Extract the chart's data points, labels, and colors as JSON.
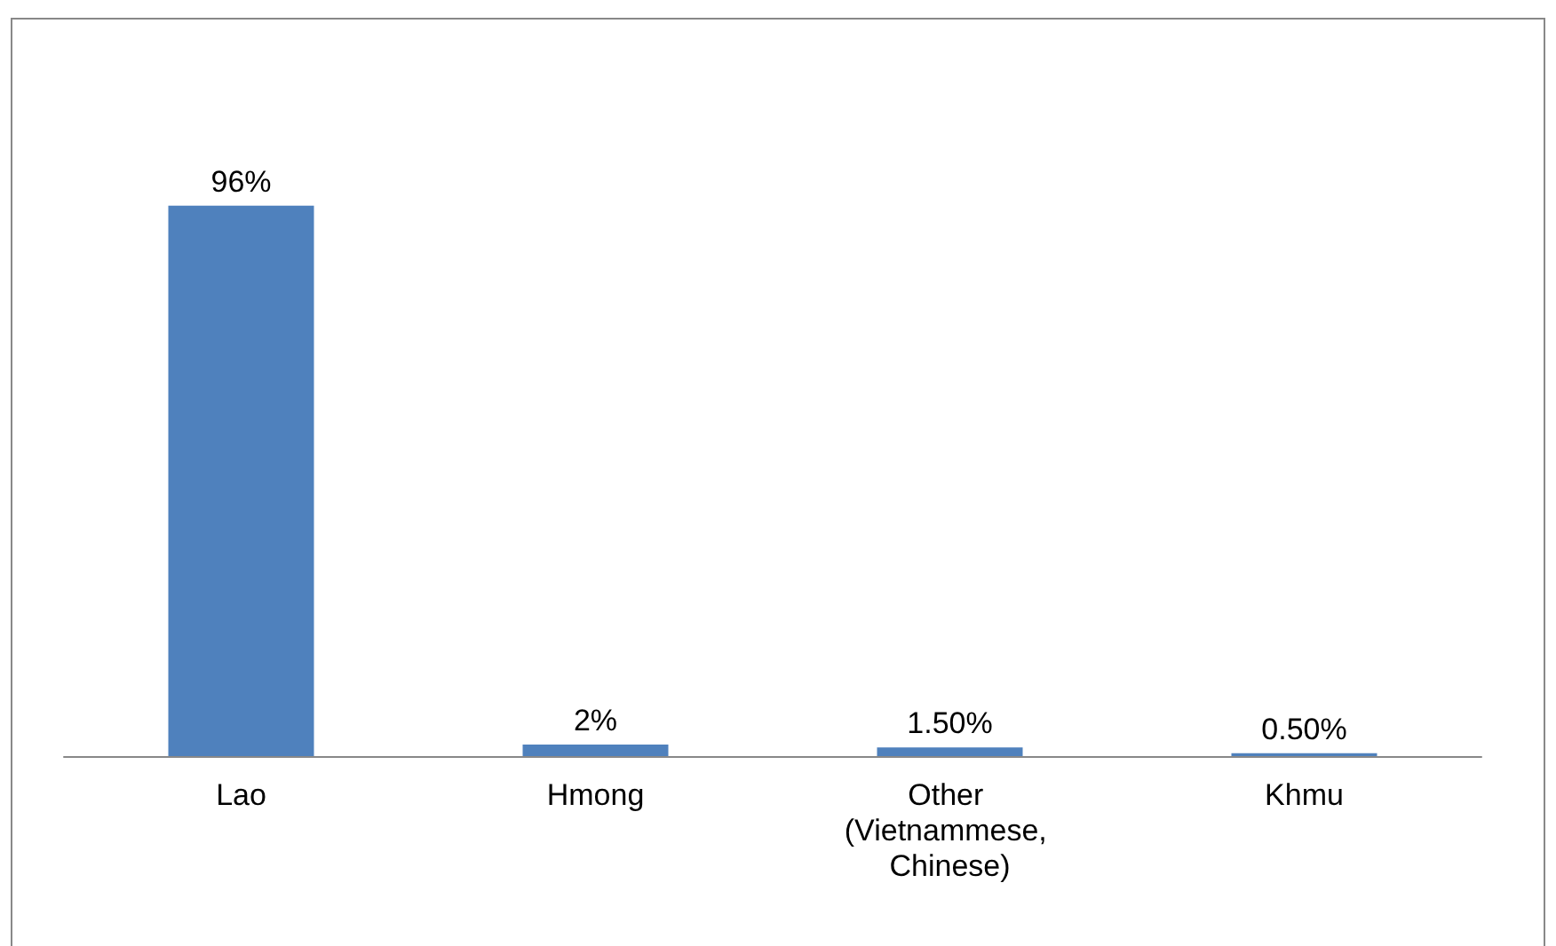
{
  "chart_data": {
    "type": "bar",
    "categories": [
      "Lao",
      "Hmong",
      "Other (Vietnammese, Chinese)",
      "Khmu"
    ],
    "values": [
      96,
      2,
      1.5,
      0.5
    ],
    "value_labels": [
      "96%",
      "2%",
      "1.50%",
      "0.50%"
    ],
    "color": "#4f81bd",
    "grid": false
  }
}
